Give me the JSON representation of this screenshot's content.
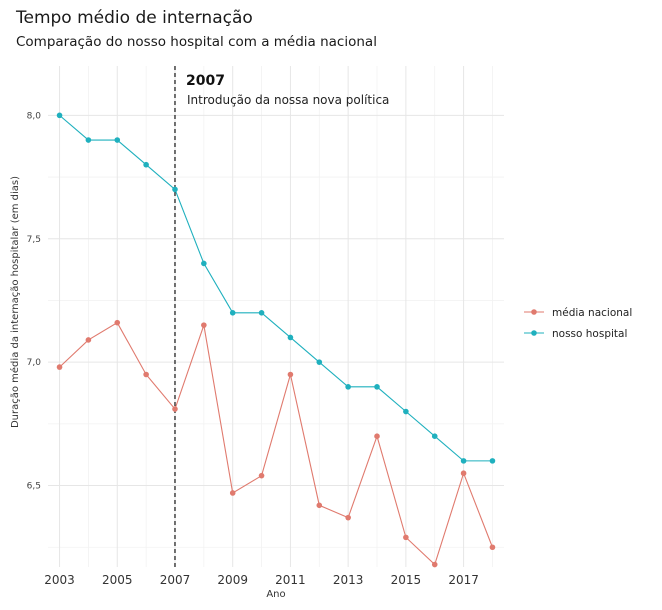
{
  "chart_data": {
    "type": "line",
    "title": "Tempo médio de internação",
    "subtitle": "Comparação do nosso hospital com a média nacional",
    "xlabel": "Ano",
    "ylabel": "Duração média da internação hospitalar (em dias)",
    "xlim": [
      2002.6,
      2018.4
    ],
    "ylim": [
      6.17,
      8.2
    ],
    "x": [
      2003,
      2004,
      2005,
      2006,
      2007,
      2008,
      2009,
      2010,
      2011,
      2012,
      2013,
      2014,
      2015,
      2016,
      2017,
      2018
    ],
    "x_ticks": [
      2003,
      2005,
      2007,
      2009,
      2011,
      2013,
      2015,
      2017
    ],
    "x_tick_labels": [
      "2003",
      "2005",
      "2007",
      "2009",
      "2011",
      "2013",
      "2015",
      "2017"
    ],
    "y_ticks": [
      6.5,
      7.0,
      7.5,
      8.0
    ],
    "y_tick_labels": [
      "6,5",
      "7,0",
      "7,5",
      "8,0"
    ],
    "grid": true,
    "legend_position": "right",
    "series": [
      {
        "name": "média nacional",
        "color": "#E07A6E",
        "values": [
          6.98,
          7.09,
          7.16,
          6.95,
          6.81,
          7.15,
          6.47,
          6.54,
          6.95,
          6.42,
          6.37,
          6.7,
          6.29,
          6.18,
          6.55,
          6.25
        ]
      },
      {
        "name": "nosso hospital",
        "color": "#1FB0BE",
        "values": [
          8.0,
          7.9,
          7.9,
          7.8,
          7.7,
          7.4,
          7.2,
          7.2,
          7.1,
          7.0,
          6.9,
          6.9,
          6.8,
          6.7,
          6.6,
          6.6
        ]
      }
    ],
    "annotation": {
      "x": 2007,
      "year_label": "2007",
      "text": "Introdução da nossa nova política"
    }
  }
}
